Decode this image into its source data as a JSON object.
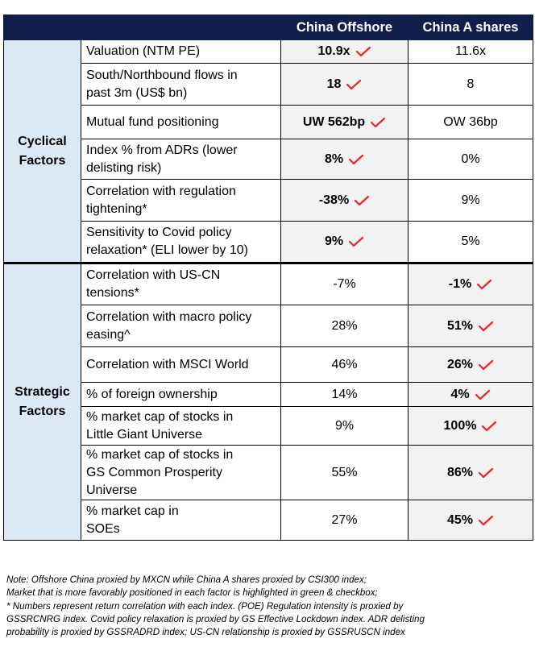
{
  "header": {
    "col1": "China Offshore",
    "col2": "China A shares"
  },
  "colors": {
    "header_bg": "#0f1e4a",
    "group_bg": "#dbe8f5",
    "highlight_bg": "#f2f2f2",
    "check": "#e8262a"
  },
  "groups": [
    {
      "label_lines": [
        "Cyclical",
        "Factors"
      ],
      "rows": [
        {
          "factor_lines": [
            "Valuation (NTM PE)"
          ],
          "offshore": "10.9x",
          "a_shares": "11.6x",
          "winner": "offshore"
        },
        {
          "factor_lines": [
            "South/Northbound flows in",
            "past 3m (US$ bn)"
          ],
          "offshore": "18",
          "a_shares": "8",
          "winner": "offshore"
        },
        {
          "factor_lines": [
            "Mutual fund positioning"
          ],
          "offshore": "UW 562bp",
          "a_shares": "OW 36bp",
          "winner": "offshore"
        },
        {
          "factor_lines": [
            "Index % from ADRs (lower",
            "delisting risk)"
          ],
          "offshore": "8%",
          "a_shares": "0%",
          "winner": "offshore"
        },
        {
          "factor_lines": [
            "Correlation with regulation",
            "tightening*"
          ],
          "offshore": "-38%",
          "a_shares": "9%",
          "winner": "offshore"
        },
        {
          "factor_lines": [
            "Sensitivity to Covid policy",
            "relaxation* (ELI lower by 10)"
          ],
          "offshore": "9%",
          "a_shares": "5%",
          "winner": "offshore"
        }
      ]
    },
    {
      "label_lines": [
        "Strategic",
        "Factors"
      ],
      "rows": [
        {
          "factor_lines": [
            "Correlation with US-CN",
            "tensions*"
          ],
          "offshore": "-7%",
          "a_shares": "-1%",
          "winner": "a_shares"
        },
        {
          "factor_lines": [
            "Correlation with macro policy",
            "easing^"
          ],
          "offshore": "28%",
          "a_shares": "51%",
          "winner": "a_shares"
        },
        {
          "factor_lines": [
            "Correlation with MSCI World"
          ],
          "offshore": "46%",
          "a_shares": "26%",
          "winner": "a_shares"
        },
        {
          "factor_lines": [
            "% of foreign ownership"
          ],
          "offshore": "14%",
          "a_shares": "4%",
          "winner": "a_shares"
        },
        {
          "factor_lines": [
            "% market cap of stocks in",
            "Little Giant Universe"
          ],
          "offshore": "9%",
          "a_shares": "100%",
          "winner": "a_shares"
        },
        {
          "factor_lines": [
            "% market cap of stocks in",
            "GS Common Prosperity",
            "Universe"
          ],
          "offshore": "55%",
          "a_shares": "86%",
          "winner": "a_shares"
        },
        {
          "factor_lines": [
            "% market cap in",
            "SOEs"
          ],
          "offshore": "27%",
          "a_shares": "45%",
          "winner": "a_shares"
        }
      ]
    }
  ],
  "notes": [
    "Note: Offshore China proxied by MXCN while China A shares proxied by CSI300 index;",
    "Market that is more favorably positioned in each factor is highlighted in green & checkbox;",
    "* Numbers represent return correlation with each index. (POE) Regulation intensity is proxied by",
    "GSSRCNRG index. Covid policy relaxation is proxied by GS Effective Lockdown index. ADR delisting",
    "probability is proxied by GSSRADRD index; US-CN relationship is proxied by GSSRUSCN index"
  ]
}
